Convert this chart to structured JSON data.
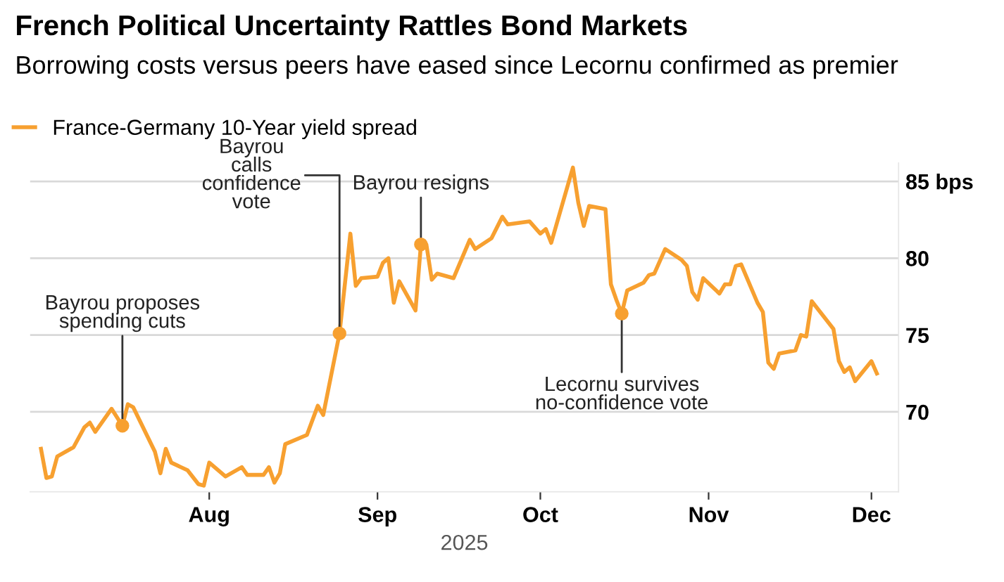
{
  "chart_data": {
    "type": "line",
    "title": "French Political Uncertainty Rattles Bond Markets",
    "subtitle": "Borrowing costs versus peers have eased since Lecornu confirmed as premier",
    "xlabel": "2025",
    "x": [
      "2025-07-01",
      "2025-07-02",
      "2025-07-03",
      "2025-07-04",
      "2025-07-07",
      "2025-07-09",
      "2025-07-10",
      "2025-07-11",
      "2025-07-14",
      "2025-07-16",
      "2025-07-17",
      "2025-07-18",
      "2025-07-22",
      "2025-07-23",
      "2025-07-24",
      "2025-07-25",
      "2025-07-28",
      "2025-07-30",
      "2025-07-31",
      "2025-08-01",
      "2025-08-04",
      "2025-08-07",
      "2025-08-08",
      "2025-08-11",
      "2025-08-12",
      "2025-08-13",
      "2025-08-14",
      "2025-08-15",
      "2025-08-19",
      "2025-08-21",
      "2025-08-22",
      "2025-08-25",
      "2025-08-27",
      "2025-08-28",
      "2025-08-29",
      "2025-09-01",
      "2025-09-02",
      "2025-09-03",
      "2025-09-04",
      "2025-09-05",
      "2025-09-08",
      "2025-09-09",
      "2025-09-10",
      "2025-09-11",
      "2025-09-12",
      "2025-09-15",
      "2025-09-18",
      "2025-09-19",
      "2025-09-22",
      "2025-09-24",
      "2025-09-25",
      "2025-09-29",
      "2025-10-01",
      "2025-10-02",
      "2025-10-03",
      "2025-10-07",
      "2025-10-08",
      "2025-10-09",
      "2025-10-10",
      "2025-10-13",
      "2025-10-14",
      "2025-10-15",
      "2025-10-16",
      "2025-10-17",
      "2025-10-20",
      "2025-10-21",
      "2025-10-22",
      "2025-10-24",
      "2025-10-27",
      "2025-10-28",
      "2025-10-29",
      "2025-10-30",
      "2025-10-31",
      "2025-11-03",
      "2025-11-04",
      "2025-11-05",
      "2025-11-06",
      "2025-11-07",
      "2025-11-10",
      "2025-11-11",
      "2025-11-12",
      "2025-11-13",
      "2025-11-14",
      "2025-11-17",
      "2025-11-18",
      "2025-11-19",
      "2025-11-20",
      "2025-11-24",
      "2025-11-25",
      "2025-11-26",
      "2025-11-27",
      "2025-11-28",
      "2025-12-01",
      "2025-12-02"
    ],
    "series": [
      {
        "name": "France-Germany 10-Year yield spread",
        "color": "#f7a030",
        "values": [
          67.6,
          65.7,
          65.8,
          67.1,
          67.7,
          69.0,
          69.3,
          68.7,
          70.2,
          69.1,
          70.5,
          70.3,
          67.4,
          66.0,
          67.6,
          66.7,
          66.2,
          65.3,
          65.2,
          66.7,
          65.8,
          66.4,
          65.9,
          65.9,
          66.4,
          65.4,
          66.0,
          67.9,
          68.5,
          70.4,
          69.8,
          75.1,
          81.6,
          78.2,
          78.7,
          78.8,
          79.7,
          80.0,
          77.1,
          78.5,
          76.6,
          80.9,
          80.9,
          78.6,
          79.0,
          78.7,
          81.2,
          80.6,
          81.3,
          82.7,
          82.2,
          82.4,
          81.6,
          81.9,
          81.0,
          85.9,
          83.6,
          82.1,
          83.4,
          83.2,
          78.3,
          77.3,
          76.4,
          77.9,
          78.4,
          78.9,
          79.0,
          80.6,
          79.9,
          79.5,
          77.8,
          77.3,
          78.7,
          77.7,
          78.3,
          78.3,
          79.5,
          79.6,
          77.1,
          76.5,
          73.2,
          72.8,
          73.8,
          74.0,
          75.0,
          74.9,
          77.2,
          75.4,
          73.3,
          72.6,
          72.9,
          72.0,
          73.3,
          72.5
        ]
      }
    ],
    "annotations": [
      {
        "text": "Bayrou proposes\nspending cuts",
        "x": "2025-07-16",
        "y": 69.1
      },
      {
        "text": "Bayrou\ncalls\nconfidence\nvote",
        "x": "2025-08-25",
        "y": 75.1
      },
      {
        "text": "Bayrou resigns",
        "x": "2025-09-09",
        "y": 80.9
      },
      {
        "text": "Lecornu survives\nno-confidence vote",
        "x": "2025-10-16",
        "y": 76.4
      }
    ],
    "xlim": [
      "2025-06-29",
      "2025-12-06"
    ],
    "xticks": [
      {
        "value": "2025-08-01",
        "label": "Aug"
      },
      {
        "value": "2025-09-01",
        "label": "Sep"
      },
      {
        "value": "2025-10-01",
        "label": "Oct"
      },
      {
        "value": "2025-11-01",
        "label": "Nov"
      },
      {
        "value": "2025-12-01",
        "label": "Dec"
      }
    ],
    "ylim": [
      64.8,
      86.2
    ],
    "yticks": [
      70,
      75,
      80,
      {
        "value": 85,
        "label": "85 bps"
      }
    ],
    "grid": "y",
    "legend": "top left",
    "line_style": "solid"
  }
}
